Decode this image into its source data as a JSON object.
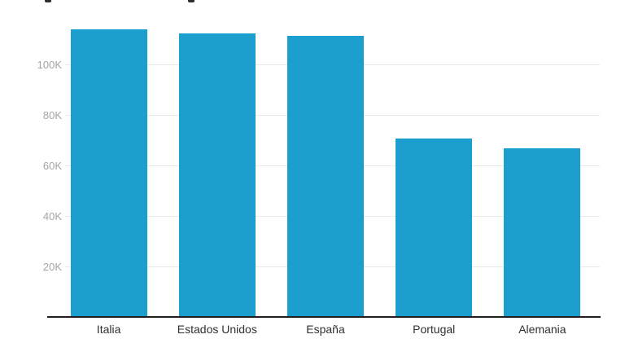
{
  "chart_data": {
    "type": "bar",
    "title": "",
    "categories": [
      "Italia",
      "Estados Unidos",
      "España",
      "Portugal",
      "Alemania"
    ],
    "values": [
      114000,
      112400,
      111500,
      70800,
      66800
    ],
    "xlabel": "",
    "ylabel": "",
    "ylim": [
      0,
      120000
    ],
    "yticks": [
      {
        "value": 20000,
        "label": "20K"
      },
      {
        "value": 40000,
        "label": "40K"
      },
      {
        "value": 60000,
        "label": "60K"
      },
      {
        "value": 80000,
        "label": "80K"
      },
      {
        "value": 100000,
        "label": "100K"
      }
    ],
    "grid": true,
    "legend_position": "none",
    "colors": {
      "bar": "#1C9ECE",
      "gridline": "#EAEAEA",
      "axis_line": "#1F1F1F",
      "ytick_label": "#A4A4A4",
      "xtick_label": "#303030",
      "background": "#FFFFFF"
    }
  }
}
